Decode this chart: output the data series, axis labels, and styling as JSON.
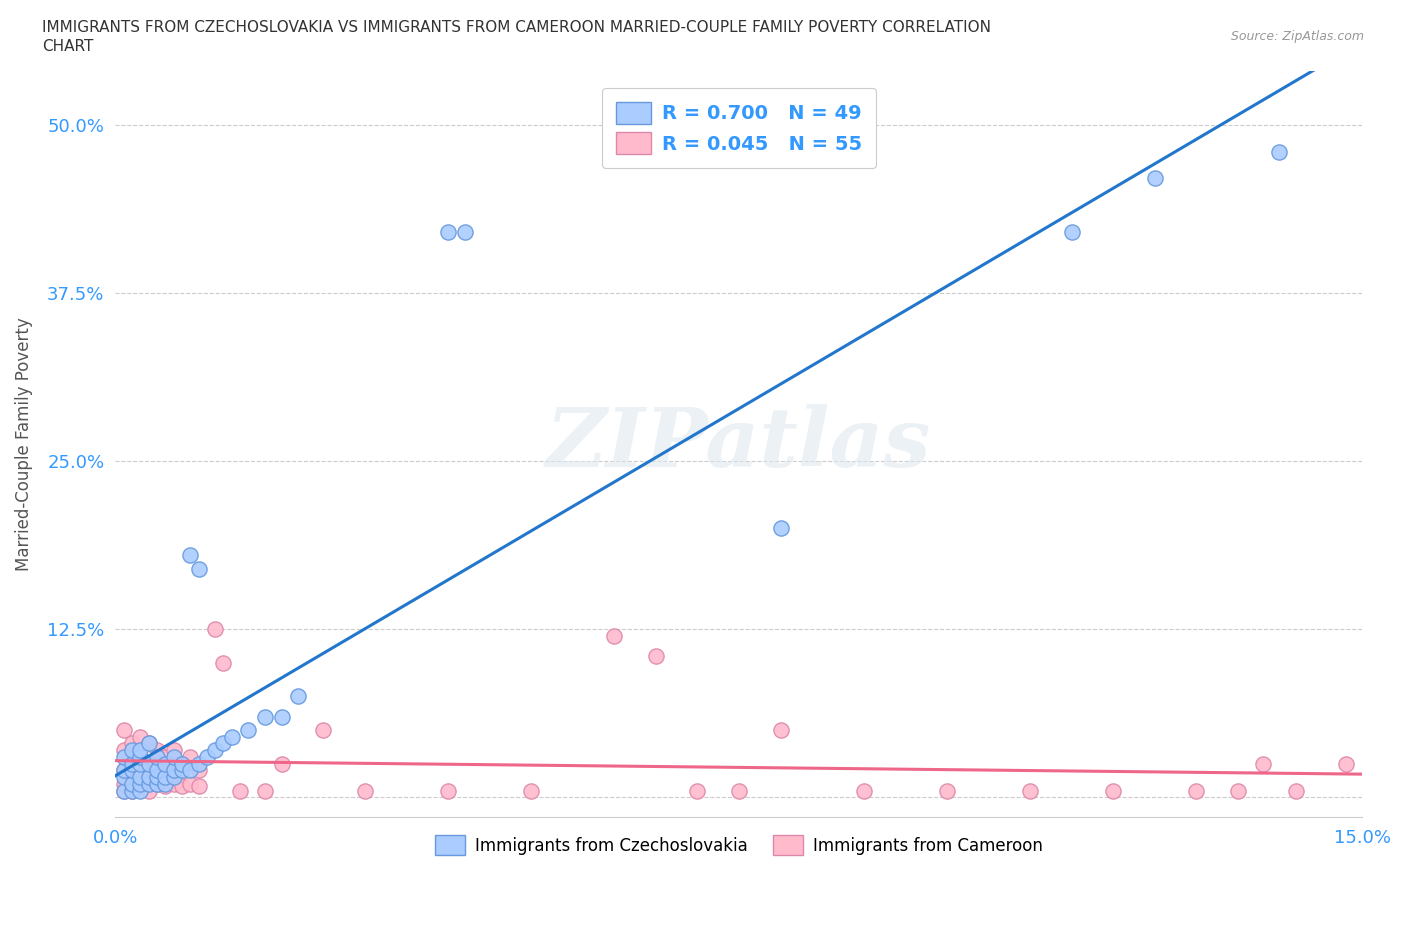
{
  "title_line1": "IMMIGRANTS FROM CZECHOSLOVAKIA VS IMMIGRANTS FROM CAMEROON MARRIED-COUPLE FAMILY POVERTY CORRELATION",
  "title_line2": "CHART",
  "source": "Source: ZipAtlas.com",
  "ylabel": "Married-Couple Family Poverty",
  "xlim": [
    0.0,
    0.15
  ],
  "ylim": [
    -0.015,
    0.54
  ],
  "xticks": [
    0.0,
    0.025,
    0.05,
    0.075,
    0.1,
    0.125,
    0.15
  ],
  "xticklabels": [
    "0.0%",
    "",
    "",
    "",
    "",
    "",
    "15.0%"
  ],
  "yticks": [
    0.0,
    0.125,
    0.25,
    0.375,
    0.5
  ],
  "yticklabels": [
    "",
    "12.5%",
    "25.0%",
    "37.5%",
    "50.0%"
  ],
  "series1_color": "#aaccff",
  "series1_edge": "#6699dd",
  "series2_color": "#ffbbcc",
  "series2_edge": "#dd88aa",
  "trend1_color": "#2277cc",
  "trend2_color": "#ee6688",
  "R1": 0.7,
  "N1": 49,
  "R2": 0.045,
  "N2": 55,
  "legend1_label": "Immigrants from Czechoslovakia",
  "legend2_label": "Immigrants from Cameroon",
  "watermark": "ZIPatlas",
  "background_color": "#ffffff",
  "grid_color": "#cccccc",
  "title_color": "#333333",
  "axis_label_color": "#555555",
  "tick_color": "#3399ff",
  "series1_x": [
    0.001,
    0.001,
    0.001,
    0.001,
    0.002,
    0.002,
    0.002,
    0.002,
    0.002,
    0.003,
    0.003,
    0.003,
    0.003,
    0.003,
    0.003,
    0.004,
    0.004,
    0.004,
    0.004,
    0.005,
    0.005,
    0.005,
    0.005,
    0.006,
    0.006,
    0.006,
    0.007,
    0.007,
    0.007,
    0.008,
    0.008,
    0.009,
    0.009,
    0.01,
    0.01,
    0.011,
    0.012,
    0.013,
    0.014,
    0.016,
    0.018,
    0.02,
    0.022,
    0.04,
    0.042,
    0.08,
    0.115,
    0.125,
    0.14
  ],
  "series1_y": [
    0.005,
    0.015,
    0.02,
    0.03,
    0.005,
    0.01,
    0.02,
    0.025,
    0.035,
    0.005,
    0.01,
    0.015,
    0.025,
    0.03,
    0.035,
    0.01,
    0.015,
    0.025,
    0.04,
    0.01,
    0.015,
    0.02,
    0.03,
    0.01,
    0.015,
    0.025,
    0.015,
    0.02,
    0.03,
    0.02,
    0.025,
    0.02,
    0.18,
    0.025,
    0.17,
    0.03,
    0.035,
    0.04,
    0.045,
    0.05,
    0.06,
    0.06,
    0.075,
    0.42,
    0.42,
    0.2,
    0.42,
    0.46,
    0.48
  ],
  "series2_x": [
    0.001,
    0.001,
    0.001,
    0.001,
    0.001,
    0.002,
    0.002,
    0.002,
    0.002,
    0.003,
    0.003,
    0.003,
    0.003,
    0.004,
    0.004,
    0.004,
    0.004,
    0.005,
    0.005,
    0.005,
    0.006,
    0.006,
    0.006,
    0.007,
    0.007,
    0.007,
    0.008,
    0.008,
    0.009,
    0.009,
    0.01,
    0.01,
    0.012,
    0.013,
    0.015,
    0.018,
    0.02,
    0.025,
    0.03,
    0.04,
    0.05,
    0.06,
    0.065,
    0.07,
    0.075,
    0.08,
    0.09,
    0.1,
    0.11,
    0.12,
    0.13,
    0.135,
    0.138,
    0.142,
    0.148
  ],
  "series2_y": [
    0.005,
    0.01,
    0.02,
    0.035,
    0.05,
    0.005,
    0.015,
    0.025,
    0.04,
    0.008,
    0.018,
    0.03,
    0.045,
    0.005,
    0.015,
    0.025,
    0.04,
    0.01,
    0.02,
    0.035,
    0.008,
    0.018,
    0.03,
    0.01,
    0.02,
    0.035,
    0.008,
    0.025,
    0.01,
    0.03,
    0.008,
    0.02,
    0.125,
    0.1,
    0.005,
    0.005,
    0.025,
    0.05,
    0.005,
    0.005,
    0.005,
    0.12,
    0.105,
    0.005,
    0.005,
    0.05,
    0.005,
    0.005,
    0.005,
    0.005,
    0.005,
    0.005,
    0.025,
    0.005,
    0.025
  ]
}
